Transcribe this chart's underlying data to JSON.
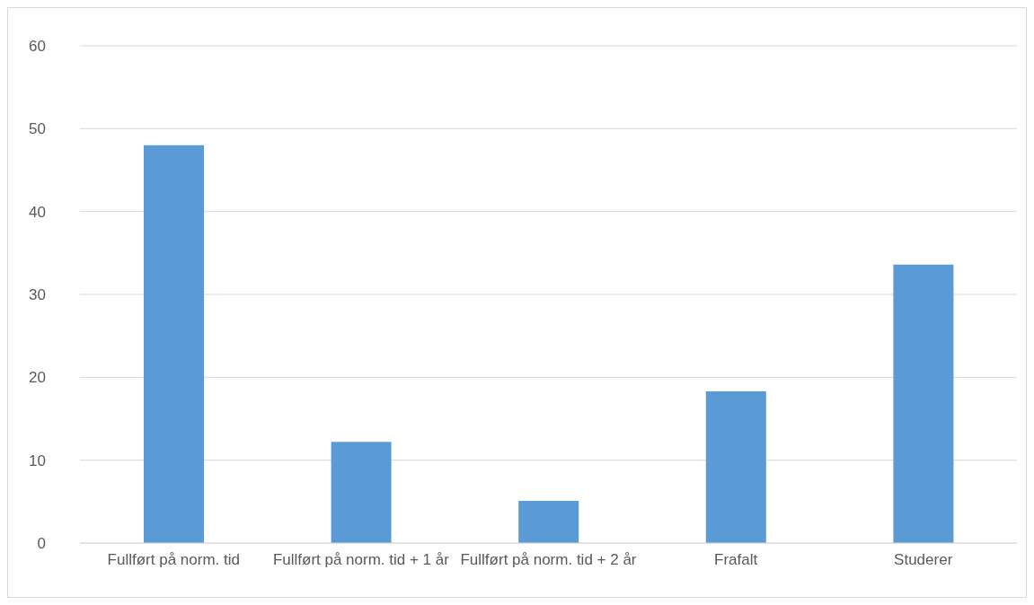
{
  "chart_data": {
    "type": "bar",
    "categories": [
      "Fullført på norm. tid",
      "Fullført på norm. tid + 1 år",
      "Fullført på norm. tid + 2 år",
      "Frafalt",
      "Studerer"
    ],
    "values": [
      48,
      12.2,
      5.1,
      18.3,
      33.6
    ],
    "color": "#5b9bd5",
    "ylim": [
      0,
      60
    ],
    "yticks": [
      0,
      10,
      20,
      30,
      40,
      50,
      60
    ],
    "grid": "y",
    "legend": false
  }
}
